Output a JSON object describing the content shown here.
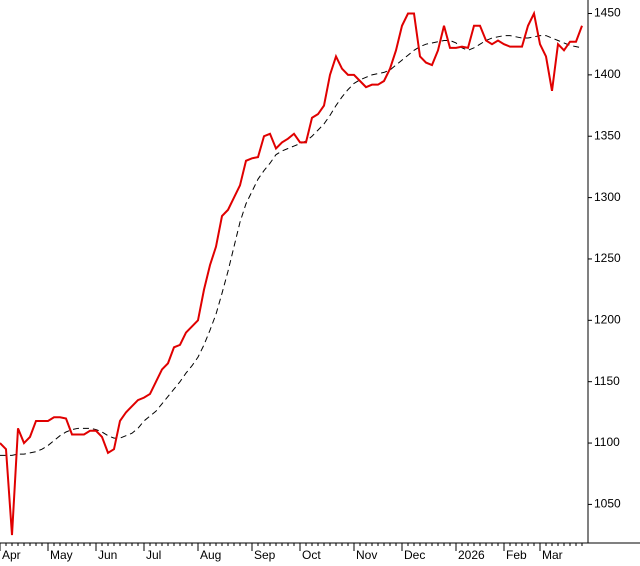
{
  "chart_data": {
    "type": "line",
    "categories": [
      "Apr",
      null,
      null,
      null,
      null,
      null,
      null,
      null,
      "May",
      null,
      null,
      null,
      null,
      null,
      null,
      null,
      "Jun",
      null,
      null,
      null,
      null,
      null,
      null,
      null,
      "Jul",
      null,
      null,
      null,
      null,
      null,
      null,
      null,
      null,
      "Aug",
      null,
      null,
      null,
      null,
      null,
      null,
      null,
      null,
      "Sep",
      null,
      null,
      null,
      null,
      null,
      null,
      null,
      "Oct",
      null,
      null,
      null,
      null,
      null,
      null,
      null,
      null,
      "Nov",
      null,
      null,
      null,
      null,
      null,
      null,
      null,
      "Dec",
      null,
      null,
      null,
      null,
      null,
      null,
      null,
      null,
      "2026",
      null,
      null,
      null,
      null,
      null,
      null,
      null,
      "Feb",
      null,
      null,
      null,
      null,
      null,
      "Mar",
      null,
      null,
      null,
      null,
      null,
      null,
      null
    ],
    "series": [
      {
        "color": "#e00000",
        "values": [
          1100,
          1095,
          1025,
          1112,
          1100,
          1105,
          1118,
          1118,
          1118,
          1121,
          1121,
          1120,
          1107,
          1107,
          1107,
          1110,
          1110,
          1105,
          1092,
          1095,
          1118,
          1125,
          1130,
          1135,
          1137,
          1140,
          1150,
          1160,
          1165,
          1178,
          1180,
          1190,
          1195,
          1200,
          1225,
          1245,
          1260,
          1285,
          1290,
          1300,
          1310,
          1330,
          1332,
          1333,
          1350,
          1352,
          1340,
          1345,
          1348,
          1352,
          1345,
          1345,
          1365,
          1368,
          1375,
          1400,
          1415,
          1405,
          1400,
          1400,
          1395,
          1390,
          1392,
          1392,
          1395,
          1405,
          1420,
          1440,
          1450,
          1450,
          1415,
          1410,
          1408,
          1420,
          1440,
          1422,
          1422,
          1423,
          1422,
          1440,
          1440,
          1428,
          1425,
          1428,
          1425,
          1423,
          1423,
          1423,
          1440,
          1450,
          1425,
          1415,
          1387,
          1425,
          1420,
          1427,
          1427,
          1440
        ]
      },
      {
        "color": "#000000",
        "dash": true,
        "values": [
          1090,
          1090,
          1090,
          1091,
          1091,
          1092,
          1093,
          1095,
          1098,
          1102,
          1106,
          1109,
          1111,
          1112,
          1112,
          1112,
          1111,
          1109,
          1106,
          1104,
          1104,
          1106,
          1108,
          1112,
          1118,
          1122,
          1126,
          1132,
          1138,
          1144,
          1150,
          1157,
          1163,
          1170,
          1180,
          1192,
          1205,
          1222,
          1240,
          1260,
          1280,
          1295,
          1305,
          1315,
          1322,
          1328,
          1335,
          1338,
          1340,
          1342,
          1344,
          1346,
          1350,
          1355,
          1360,
          1367,
          1375,
          1382,
          1388,
          1393,
          1396,
          1398,
          1400,
          1401,
          1402,
          1404,
          1408,
          1412,
          1416,
          1420,
          1423,
          1425,
          1426,
          1427,
          1428,
          1428,
          1426,
          1422,
          1420,
          1422,
          1425,
          1428,
          1430,
          1431,
          1432,
          1432,
          1431,
          1430,
          1430,
          1431,
          1432,
          1432,
          1430,
          1428,
          1426,
          1424,
          1423,
          1422
        ]
      }
    ],
    "ylim": [
      1021,
      1461
    ],
    "yticks": [
      1050,
      1100,
      1150,
      1200,
      1250,
      1300,
      1350,
      1400,
      1450
    ]
  }
}
